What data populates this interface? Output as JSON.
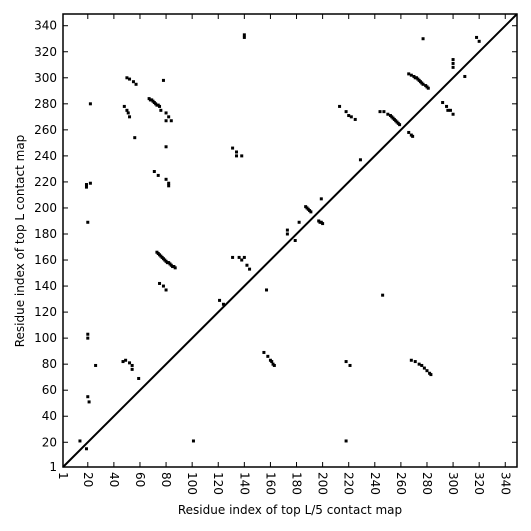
{
  "chart_data": {
    "type": "scatter",
    "xlabel": "Residue index of top L/5 contact map",
    "ylabel": "Residue index of top L contact map",
    "color": "#000000",
    "xlim": [
      1,
      349
    ],
    "ylim": [
      1,
      349
    ],
    "xticks": [
      1,
      20,
      40,
      60,
      80,
      100,
      120,
      140,
      160,
      180,
      200,
      220,
      240,
      260,
      280,
      300,
      320,
      340
    ],
    "yticks": [
      1,
      20,
      40,
      60,
      80,
      100,
      120,
      140,
      160,
      180,
      200,
      220,
      240,
      260,
      280,
      300,
      320,
      340
    ],
    "x": [
      67,
      68,
      69,
      70,
      71,
      72,
      73,
      74,
      75,
      78,
      76,
      80,
      82,
      84,
      80,
      48,
      50,
      51,
      52,
      50,
      52,
      55,
      57,
      71,
      74,
      80,
      82,
      82,
      73,
      74,
      75,
      76,
      77,
      78,
      79,
      80,
      81,
      82,
      83,
      84,
      85,
      86,
      87,
      75,
      78,
      80,
      19,
      19,
      22,
      20,
      22,
      80,
      140,
      140,
      131,
      134,
      134,
      138,
      131,
      136,
      138,
      140,
      142,
      144,
      121,
      124,
      173,
      173,
      179,
      182,
      187,
      188,
      189,
      190,
      191,
      199,
      197,
      198,
      199,
      200,
      213,
      218,
      220,
      222,
      225,
      229,
      244,
      247,
      250,
      252,
      253,
      254,
      255,
      256,
      257,
      258,
      259,
      266,
      268,
      269,
      266,
      268,
      270,
      271,
      272,
      273,
      274,
      275,
      276,
      277,
      279,
      280,
      281,
      277,
      292,
      295,
      296,
      298,
      300,
      300,
      300,
      300,
      309,
      318,
      320,
      56,
      20,
      21,
      20,
      20,
      26,
      14,
      19,
      47,
      49,
      52,
      54,
      54,
      59,
      101,
      155,
      158,
      160,
      161,
      162,
      163,
      157,
      218,
      221,
      218,
      246,
      268,
      271,
      274,
      276,
      278,
      280,
      282,
      283
    ],
    "values": [
      284,
      283,
      283,
      282,
      281,
      280,
      279,
      279,
      278,
      298,
      275,
      273,
      270,
      267,
      267,
      278,
      275,
      273,
      270,
      300,
      299,
      297,
      295,
      228,
      225,
      222,
      219,
      217,
      166,
      165,
      164,
      163,
      162,
      161,
      160,
      159,
      158,
      158,
      157,
      156,
      155,
      155,
      154,
      142,
      140,
      137,
      218,
      216,
      219,
      189,
      280,
      247,
      333,
      331,
      246,
      243,
      240,
      240,
      162,
      162,
      160,
      162,
      156,
      153,
      129,
      126,
      183,
      180,
      175,
      189,
      201,
      200,
      199,
      198,
      197,
      207,
      190,
      189,
      189,
      188,
      278,
      274,
      271,
      270,
      268,
      237,
      274,
      274,
      272,
      271,
      270,
      269,
      268,
      267,
      266,
      265,
      264,
      258,
      256,
      255,
      303,
      302,
      301,
      300,
      300,
      299,
      298,
      297,
      296,
      295,
      294,
      293,
      292,
      330,
      281,
      278,
      275,
      275,
      272,
      314,
      311,
      308,
      301,
      331,
      328,
      254,
      55,
      51,
      103,
      100,
      79,
      21,
      15,
      82,
      83,
      81,
      79,
      76,
      69,
      21,
      89,
      86,
      83,
      82,
      80,
      79,
      137,
      82,
      79,
      21,
      133,
      83,
      82,
      80,
      79,
      77,
      75,
      73,
      72
    ]
  }
}
